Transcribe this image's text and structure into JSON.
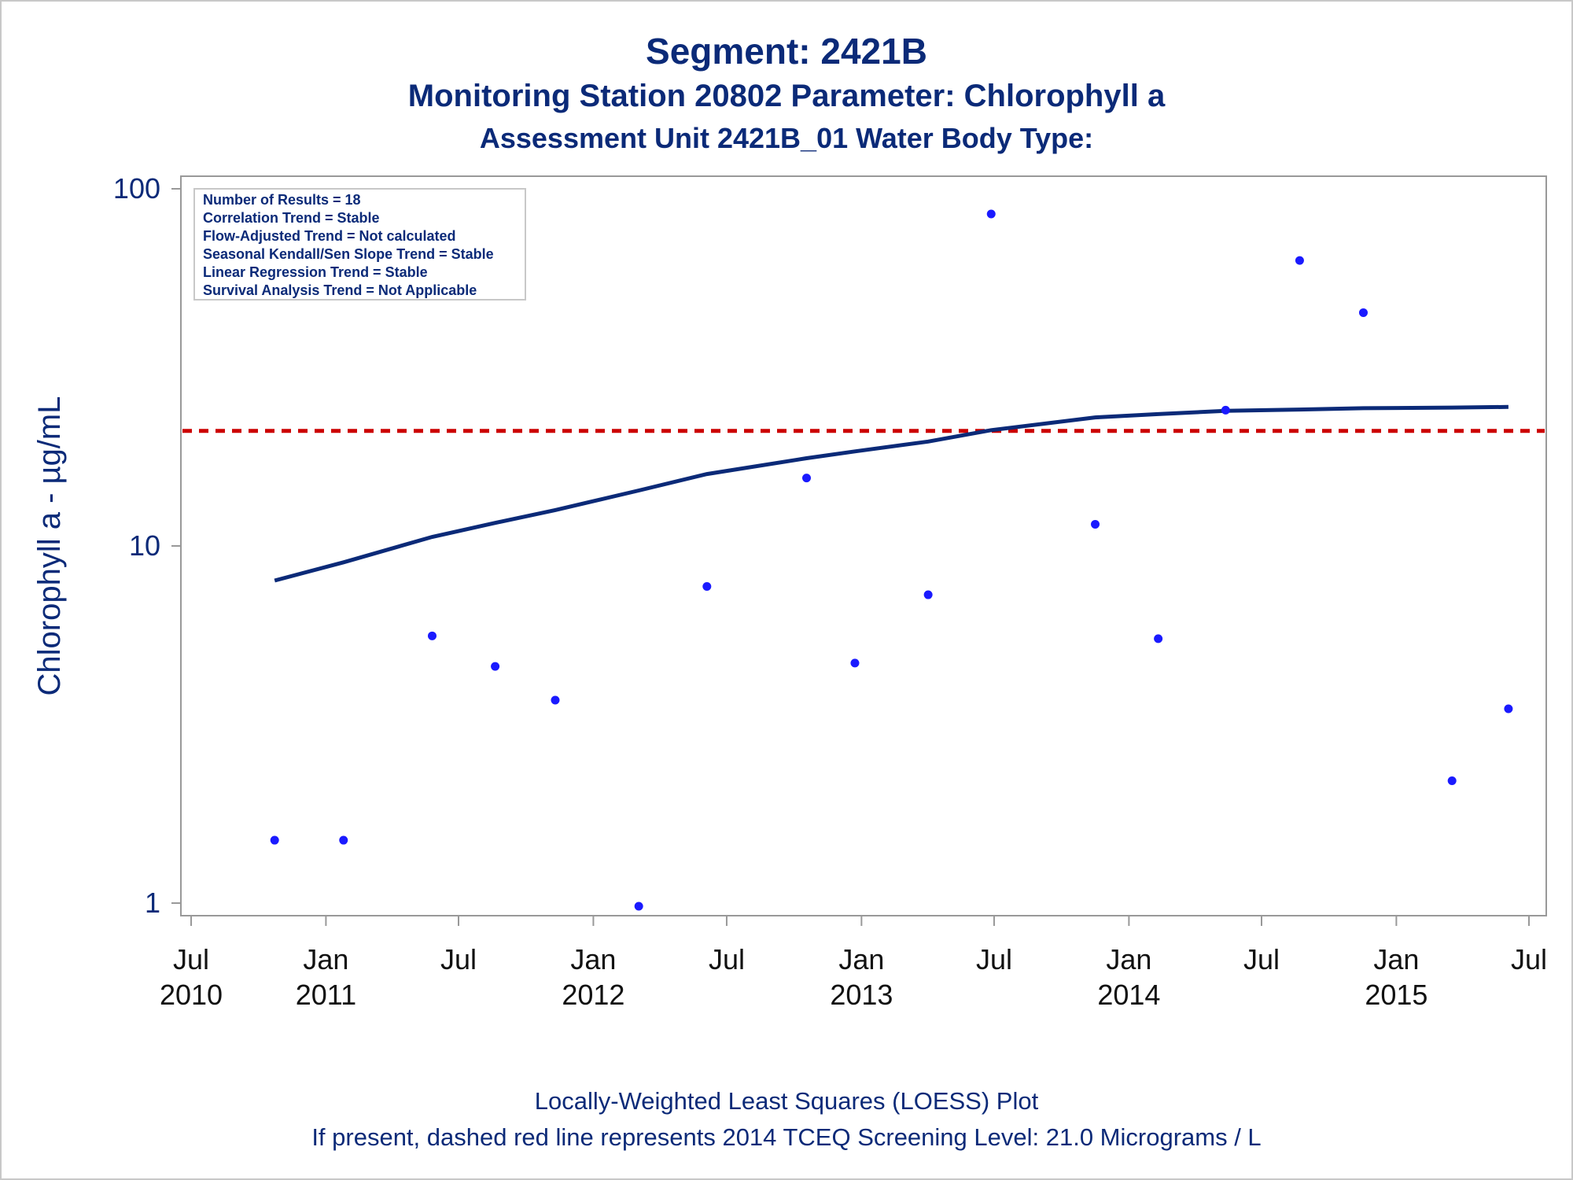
{
  "titles": {
    "line1": "Segment: 2421B",
    "line2": "Monitoring Station 20802 Parameter: Chlorophyll a",
    "line3": "Assessment Unit 2421B_01   Water Body Type:"
  },
  "footnotes": {
    "line1": "Locally-Weighted Least Squares (LOESS) Plot",
    "line2": "If present, dashed red line represents 2014 TCEQ Screening Level: 21.0 Micrograms / L"
  },
  "colors": {
    "text": "#0b2a78",
    "points": "#1a1aff",
    "loess": "#0b2a78",
    "screening_line": "#cc0000",
    "axis": "#999999"
  },
  "chart_data": {
    "type": "scatter",
    "ylabel": "Chlorophyll a -  µg/mL",
    "xlabel": "",
    "y_scale": "log",
    "ylim": [
      1,
      100
    ],
    "xlim": [
      "2010-07-01",
      "2015-07-01"
    ],
    "y_ticks": [
      {
        "value": 1,
        "label": "1"
      },
      {
        "value": 10,
        "label": "10"
      },
      {
        "value": 100,
        "label": "100"
      }
    ],
    "x_ticks": [
      {
        "date": "2010-07-01",
        "label": "Jul",
        "year": "2010"
      },
      {
        "date": "2011-01-01",
        "label": "Jan",
        "year": "2011"
      },
      {
        "date": "2011-07-01",
        "label": "Jul",
        "year": ""
      },
      {
        "date": "2012-01-01",
        "label": "Jan",
        "year": "2012"
      },
      {
        "date": "2012-07-01",
        "label": "Jul",
        "year": ""
      },
      {
        "date": "2013-01-01",
        "label": "Jan",
        "year": "2013"
      },
      {
        "date": "2013-07-01",
        "label": "Jul",
        "year": ""
      },
      {
        "date": "2014-01-01",
        "label": "Jan",
        "year": "2014"
      },
      {
        "date": "2014-07-01",
        "label": "Jul",
        "year": ""
      },
      {
        "date": "2015-01-01",
        "label": "Jan",
        "year": "2015"
      },
      {
        "date": "2015-07-01",
        "label": "Jul",
        "year": ""
      }
    ],
    "series": [
      {
        "type": "scatter",
        "points": [
          {
            "x": "2010-10-23",
            "y": 1.5
          },
          {
            "x": "2011-01-25",
            "y": 1.5
          },
          {
            "x": "2011-05-26",
            "y": 5.6
          },
          {
            "x": "2011-08-20",
            "y": 4.6
          },
          {
            "x": "2011-11-10",
            "y": 3.7
          },
          {
            "x": "2012-03-03",
            "y": 0.98
          },
          {
            "x": "2012-06-04",
            "y": 7.7
          },
          {
            "x": "2012-10-18",
            "y": 15.5
          },
          {
            "x": "2012-12-23",
            "y": 4.7
          },
          {
            "x": "2013-04-02",
            "y": 7.3
          },
          {
            "x": "2013-06-27",
            "y": 85
          },
          {
            "x": "2013-11-16",
            "y": 11.5
          },
          {
            "x": "2014-02-10",
            "y": 5.5
          },
          {
            "x": "2014-05-13",
            "y": 24
          },
          {
            "x": "2014-08-22",
            "y": 63
          },
          {
            "x": "2014-11-17",
            "y": 45
          },
          {
            "x": "2015-03-18",
            "y": 2.2
          },
          {
            "x": "2015-06-03",
            "y": 3.5
          }
        ]
      },
      {
        "type": "line",
        "points": [
          {
            "x": "2010-10-23",
            "y": 8.0
          },
          {
            "x": "2011-01-25",
            "y": 9.0
          },
          {
            "x": "2011-05-26",
            "y": 10.6
          },
          {
            "x": "2011-08-20",
            "y": 11.6
          },
          {
            "x": "2011-11-10",
            "y": 12.6
          },
          {
            "x": "2012-03-03",
            "y": 14.3
          },
          {
            "x": "2012-06-04",
            "y": 15.9
          },
          {
            "x": "2012-10-18",
            "y": 17.6
          },
          {
            "x": "2012-12-23",
            "y": 18.4
          },
          {
            "x": "2013-04-02",
            "y": 19.6
          },
          {
            "x": "2013-06-27",
            "y": 21.1
          },
          {
            "x": "2013-11-16",
            "y": 22.9
          },
          {
            "x": "2014-02-10",
            "y": 23.4
          },
          {
            "x": "2014-05-13",
            "y": 23.9
          },
          {
            "x": "2014-08-22",
            "y": 24.1
          },
          {
            "x": "2014-11-17",
            "y": 24.3
          },
          {
            "x": "2015-03-18",
            "y": 24.4
          },
          {
            "x": "2015-06-03",
            "y": 24.5
          }
        ]
      }
    ],
    "reference_line": {
      "y": 21.0,
      "style": "dashed"
    },
    "stats_box": [
      "Number of Results = 18",
      "Correlation Trend = Stable",
      "Flow-Adjusted Trend = Not calculated",
      "Seasonal Kendall/Sen Slope Trend = Stable",
      "Linear Regression Trend = Stable",
      "Survival Analysis Trend = Not Applicable"
    ],
    "grid": false
  }
}
